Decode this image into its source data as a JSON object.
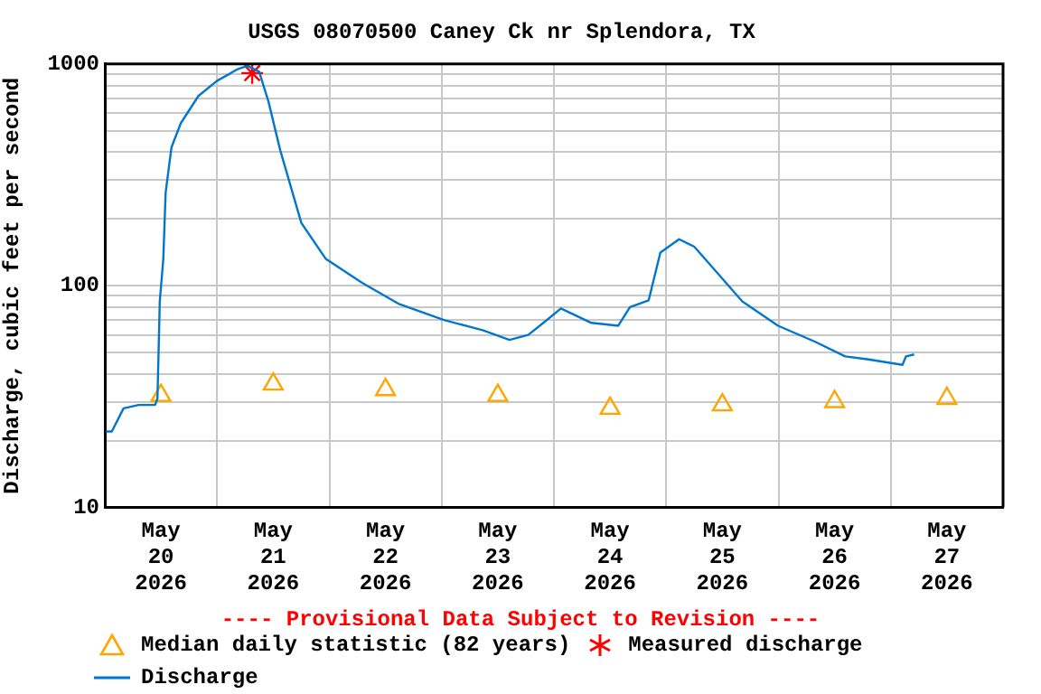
{
  "chart_data": {
    "type": "line",
    "title": "USGS 08070500 Caney Ck nr Splendora, TX",
    "ylabel": "Discharge, cubic feet per second",
    "annotations": [
      "---- Provisional Data Subject to Revision ----"
    ],
    "log": "y",
    "grid": true,
    "legend": "bottom",
    "xlim": [
      "2026-05-20T00:00",
      "2026-05-28T00:00"
    ],
    "xticks": [
      {
        "value": "2026-05-20T00:00",
        "label": null
      },
      {
        "value": "2026-05-20T12:00",
        "label": "May\n20\n2026"
      },
      {
        "value": "2026-05-21T00:00",
        "label": null
      },
      {
        "value": "2026-05-21T12:00",
        "label": "May\n21\n2026"
      },
      {
        "value": "2026-05-22T00:00",
        "label": null
      },
      {
        "value": "2026-05-22T12:00",
        "label": "May\n22\n2026"
      },
      {
        "value": "2026-05-23T00:00",
        "label": null
      },
      {
        "value": "2026-05-23T12:00",
        "label": "May\n23\n2026"
      },
      {
        "value": "2026-05-24T00:00",
        "label": null
      },
      {
        "value": "2026-05-24T12:00",
        "label": "May\n24\n2026"
      },
      {
        "value": "2026-05-25T00:00",
        "label": null
      },
      {
        "value": "2026-05-25T12:00",
        "label": "May\n25\n2026"
      },
      {
        "value": "2026-05-26T00:00",
        "label": null
      },
      {
        "value": "2026-05-26T12:00",
        "label": "May\n26\n2026"
      },
      {
        "value": "2026-05-27T00:00",
        "label": null
      },
      {
        "value": "2026-05-27T12:00",
        "label": "May\n27\n2026"
      },
      {
        "value": "2026-05-28T00:00",
        "label": null
      }
    ],
    "ylim": [
      10,
      1000
    ],
    "yticks": [
      10,
      {
        "value": 20,
        "label": null
      },
      {
        "value": 30,
        "label": null
      },
      {
        "value": 40,
        "label": null
      },
      {
        "value": 50,
        "label": null
      },
      {
        "value": 60,
        "label": null
      },
      {
        "value": 70,
        "label": null
      },
      {
        "value": 80,
        "label": null
      },
      {
        "value": 90,
        "label": null
      },
      100,
      {
        "value": 200,
        "label": null
      },
      {
        "value": 300,
        "label": null
      },
      {
        "value": 400,
        "label": null
      },
      {
        "value": 500,
        "label": null
      },
      {
        "value": 600,
        "label": null
      },
      {
        "value": 700,
        "label": null
      },
      {
        "value": 800,
        "label": null
      },
      {
        "value": 900,
        "label": null
      },
      1000
    ],
    "series": [
      {
        "name": "Median daily statistic (82 years)",
        "type": "scatter",
        "marker": "triangle",
        "color": "#ffa500",
        "x": [
          "2026-05-20T12:00",
          "2026-05-21T12:00",
          "2026-05-22T12:00",
          "2026-05-23T12:00",
          "2026-05-24T12:00",
          "2026-05-25T12:00",
          "2026-05-26T12:00",
          "2026-05-27T12:00"
        ],
        "values": [
          32,
          36,
          34,
          32,
          28,
          29,
          30,
          31
        ]
      },
      {
        "name": "Measured discharge",
        "type": "scatter",
        "marker": "cross",
        "color": "#ff0000",
        "x": [
          "2026-05-21T07:30"
        ],
        "values": [
          910
        ]
      },
      {
        "name": "Discharge",
        "marker": "none",
        "color": "#0077cc",
        "x": [
          "2026-05-20T00:15",
          "2026-05-20T01:30",
          "2026-05-20T04:00",
          "2026-05-20T07:15",
          "2026-05-20T10:45",
          "2026-05-20T11:15",
          "2026-05-20T11:45",
          "2026-05-20T12:30",
          "2026-05-20T13:00",
          "2026-05-20T14:15",
          "2026-05-20T16:15",
          "2026-05-20T20:00",
          "2026-05-21T00:00",
          "2026-05-21T04:30",
          "2026-05-21T06:30",
          "2026-05-21T09:00",
          "2026-05-21T11:00",
          "2026-05-21T13:30",
          "2026-05-21T18:00",
          "2026-05-21T23:15",
          "2026-05-22T07:00",
          "2026-05-22T14:45",
          "2026-05-23T00:30",
          "2026-05-23T08:45",
          "2026-05-23T14:30",
          "2026-05-23T18:30",
          "2026-05-23T21:45",
          "2026-05-24T01:30",
          "2026-05-24T08:00",
          "2026-05-24T13:45",
          "2026-05-24T16:15",
          "2026-05-24T20:15",
          "2026-05-24T22:45",
          "2026-05-25T02:45",
          "2026-05-25T06:00",
          "2026-05-25T10:30",
          "2026-05-25T16:15",
          "2026-05-25T23:55",
          "2026-05-26T07:45",
          "2026-05-26T14:15",
          "2026-05-26T19:15",
          "2026-05-27T02:30",
          "2026-05-27T03:15",
          "2026-05-27T05:00"
        ],
        "values": [
          22,
          22,
          28,
          29,
          29,
          31,
          85,
          132,
          263,
          421,
          541,
          717,
          840,
          950,
          981,
          923,
          674,
          408,
          192,
          132,
          103,
          83,
          70,
          63,
          57,
          60,
          68,
          79,
          68,
          66,
          80,
          86,
          141,
          162,
          150,
          117,
          85,
          66,
          56,
          48,
          46.5,
          44,
          48,
          49
        ]
      }
    ]
  }
}
